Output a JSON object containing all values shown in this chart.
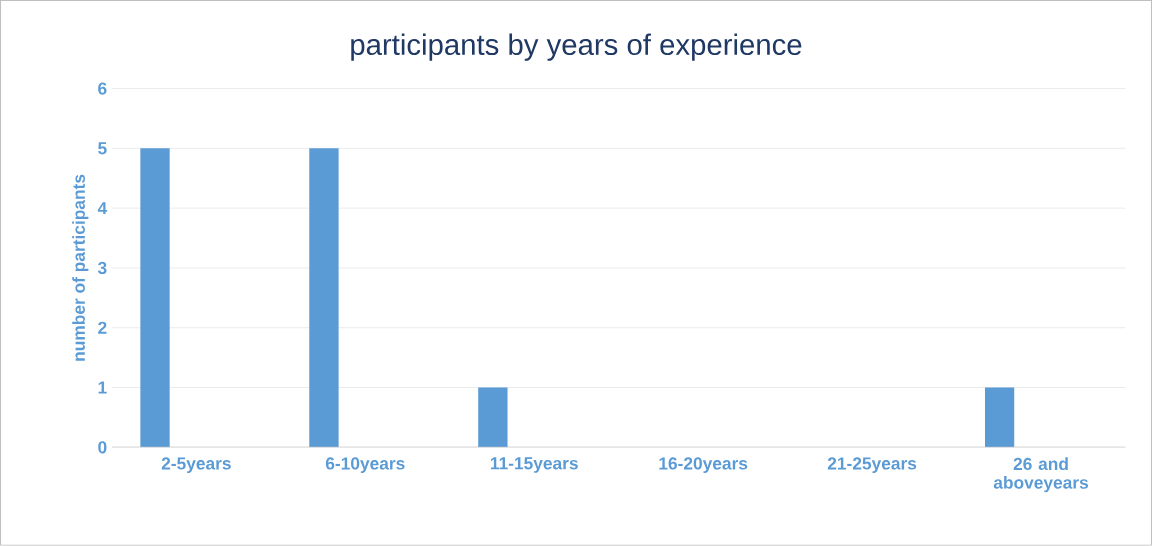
{
  "chart_data": {
    "type": "bar",
    "title": "participants by years of experience",
    "ylabel": "number of participants",
    "categories": [
      "2-5years",
      "6-10years",
      "11-15years",
      "16-20years",
      "21-25years",
      "26 and aboveyears"
    ],
    "values": [
      5,
      5,
      1,
      0,
      0,
      1
    ],
    "color": "#5b9bd5",
    "ylim": [
      0,
      6
    ],
    "yticks": [
      0,
      1,
      2,
      3,
      4,
      5,
      6
    ],
    "grid": "y"
  }
}
